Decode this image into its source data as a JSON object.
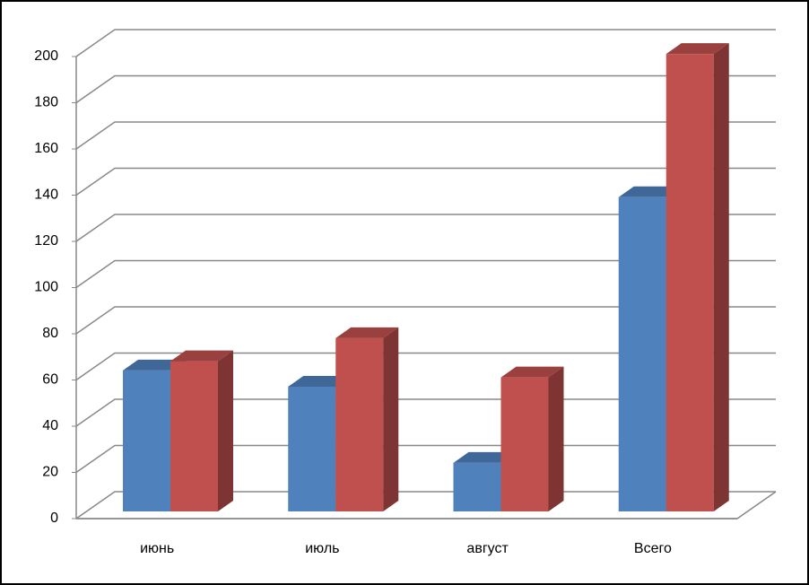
{
  "chart_data": {
    "type": "bar3d",
    "categories": [
      "июнь",
      "июль",
      "август",
      "Всего"
    ],
    "series": [
      {
        "color": "#4f81bd",
        "values": [
          61,
          54,
          21,
          136
        ]
      },
      {
        "color": "#c0504d",
        "values": [
          65,
          75,
          58,
          198
        ]
      }
    ],
    "ylim": [
      0,
      200
    ],
    "yticks": [
      0,
      20,
      40,
      60,
      80,
      100,
      120,
      140,
      160,
      180,
      200
    ],
    "grid": true
  }
}
